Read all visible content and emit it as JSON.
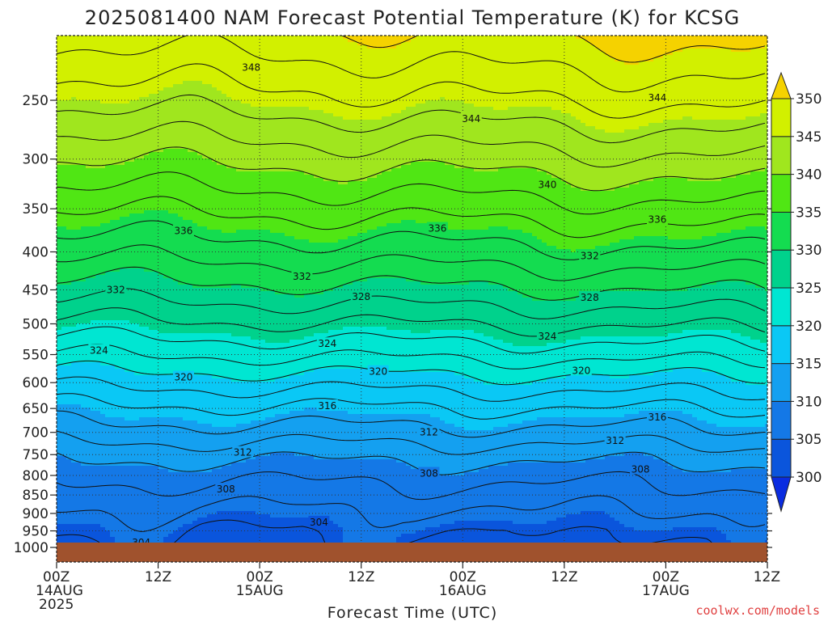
{
  "title": "2025081400 NAM Forecast Potential Temperature (K) for KCSG",
  "credit": "coolwx.com/models",
  "chart_data": {
    "type": "heatmap",
    "title": "2025081400 NAM Forecast Potential Temperature (K) for KCSG",
    "xlabel": "Forecast Time (UTC)",
    "ylabel": "",
    "x_range_hours": [
      0,
      84
    ],
    "y_range_hpa": [
      1000,
      200
    ],
    "y_scale": "log",
    "y_ticks": [
      250,
      300,
      350,
      400,
      450,
      500,
      550,
      600,
      650,
      700,
      750,
      800,
      850,
      900,
      950,
      1000
    ],
    "x_ticks": [
      {
        "hour": 0,
        "top": "00Z",
        "mid": "14AUG",
        "bot": "2025"
      },
      {
        "hour": 12,
        "top": "12Z",
        "mid": "",
        "bot": ""
      },
      {
        "hour": 24,
        "top": "00Z",
        "mid": "15AUG",
        "bot": ""
      },
      {
        "hour": 36,
        "top": "12Z",
        "mid": "",
        "bot": ""
      },
      {
        "hour": 48,
        "top": "00Z",
        "mid": "16AUG",
        "bot": ""
      },
      {
        "hour": 60,
        "top": "12Z",
        "mid": "",
        "bot": ""
      },
      {
        "hour": 72,
        "top": "00Z",
        "mid": "17AUG",
        "bot": ""
      },
      {
        "hour": 84,
        "top": "12Z",
        "mid": "",
        "bot": ""
      }
    ],
    "grid": true,
    "colorbar": {
      "levels": [
        300,
        305,
        310,
        315,
        320,
        325,
        330,
        335,
        340,
        345,
        350
      ],
      "colors": [
        "#0a2ce0",
        "#0a55dc",
        "#1478e6",
        "#14a0f0",
        "#0ac8f5",
        "#00e6d2",
        "#00d28c",
        "#14dc50",
        "#50e614",
        "#a0e61e",
        "#d2f000",
        "#f5d200"
      ],
      "labels": [
        "300",
        "305",
        "310",
        "315",
        "320",
        "325",
        "330",
        "335",
        "340",
        "345",
        "350"
      ]
    },
    "ground_color": "#a0522d",
    "surface_pressure_hpa": 985,
    "sounding_profile": [
      {
        "p": 1000,
        "theta": 303.0
      },
      {
        "p": 950,
        "theta": 304.0
      },
      {
        "p": 900,
        "theta": 305.5
      },
      {
        "p": 850,
        "theta": 307.0
      },
      {
        "p": 800,
        "theta": 308.5
      },
      {
        "p": 750,
        "theta": 310.5
      },
      {
        "p": 700,
        "theta": 313.0
      },
      {
        "p": 650,
        "theta": 315.5
      },
      {
        "p": 600,
        "theta": 318.5
      },
      {
        "p": 550,
        "theta": 322.0
      },
      {
        "p": 500,
        "theta": 325.5
      },
      {
        "p": 450,
        "theta": 329.0
      },
      {
        "p": 400,
        "theta": 332.5
      },
      {
        "p": 350,
        "theta": 336.0
      },
      {
        "p": 300,
        "theta": 340.0
      },
      {
        "p": 250,
        "theta": 344.5
      },
      {
        "p": 200,
        "theta": 349.0
      }
    ],
    "contour_levels": [
      302,
      304,
      306,
      308,
      310,
      312,
      314,
      316,
      318,
      320,
      322,
      324,
      326,
      328,
      330,
      332,
      334,
      336,
      338,
      340,
      342,
      344,
      346,
      348,
      350
    ],
    "contour_labels": [
      {
        "hour": 10,
        "p": 985,
        "text": "304"
      },
      {
        "hour": 31,
        "p": 925,
        "text": "304"
      },
      {
        "hour": 20,
        "p": 835,
        "text": "308"
      },
      {
        "hour": 44,
        "p": 795,
        "text": "308"
      },
      {
        "hour": 69,
        "p": 785,
        "text": "308"
      },
      {
        "hour": 22,
        "p": 745,
        "text": "312"
      },
      {
        "hour": 44,
        "p": 700,
        "text": "312"
      },
      {
        "hour": 66,
        "p": 718,
        "text": "312"
      },
      {
        "hour": 32,
        "p": 645,
        "text": "316"
      },
      {
        "hour": 71,
        "p": 668,
        "text": "316"
      },
      {
        "hour": 15,
        "p": 590,
        "text": "320"
      },
      {
        "hour": 38,
        "p": 580,
        "text": "320"
      },
      {
        "hour": 62,
        "p": 578,
        "text": "320"
      },
      {
        "hour": 5,
        "p": 543,
        "text": "324"
      },
      {
        "hour": 32,
        "p": 532,
        "text": "324"
      },
      {
        "hour": 58,
        "p": 520,
        "text": "324"
      },
      {
        "hour": 36,
        "p": 460,
        "text": "328"
      },
      {
        "hour": 63,
        "p": 461,
        "text": "328"
      },
      {
        "hour": 7,
        "p": 450,
        "text": "332"
      },
      {
        "hour": 29,
        "p": 432,
        "text": "332"
      },
      {
        "hour": 63,
        "p": 405,
        "text": "332"
      },
      {
        "hour": 15,
        "p": 375,
        "text": "336"
      },
      {
        "hour": 45,
        "p": 372,
        "text": "336"
      },
      {
        "hour": 71,
        "p": 362,
        "text": "336"
      },
      {
        "hour": 58,
        "p": 325,
        "text": "340"
      },
      {
        "hour": 49,
        "p": 265,
        "text": "344"
      },
      {
        "hour": 71,
        "p": 248,
        "text": "344"
      },
      {
        "hour": 23,
        "p": 226,
        "text": "348"
      }
    ]
  }
}
